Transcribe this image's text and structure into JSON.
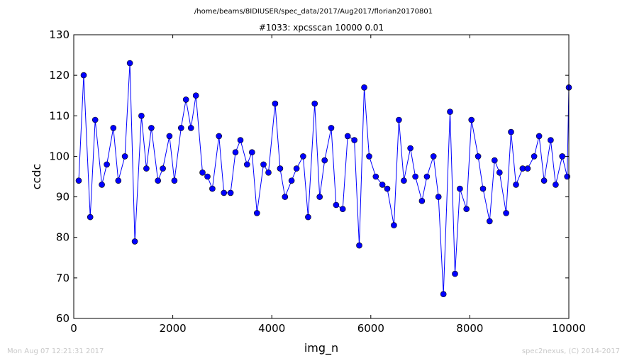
{
  "chart_data": {
    "type": "line",
    "suptitle": "/home/beams/8IDIUSER/spec_data/2017/Aug2017/florian20170801",
    "title": "#1033: xpcsscan 10000 0.01",
    "xlabel": "img_n",
    "ylabel": "ccdc",
    "xlim": [
      0,
      10000
    ],
    "ylim": [
      60,
      130
    ],
    "xticks": [
      0,
      2000,
      4000,
      6000,
      8000,
      10000
    ],
    "yticks": [
      60,
      70,
      80,
      90,
      100,
      110,
      120,
      130
    ],
    "xtick_labels": [
      "0",
      "2000",
      "4000",
      "6000",
      "8000",
      "10000"
    ],
    "ytick_labels": [
      "60",
      "70",
      "80",
      "90",
      "100",
      "110",
      "120",
      "130"
    ],
    "grid": false,
    "line_color": "#0000ff",
    "marker_color": "#0000ff",
    "marker": "circle",
    "series": [
      {
        "x": [
          100,
          200,
          333,
          433,
          567,
          667,
          800,
          900,
          1033,
          1133,
          1233,
          1367,
          1467,
          1567,
          1700,
          1800,
          1933,
          2033,
          2167,
          2267,
          2367,
          2467,
          2600,
          2700,
          2800,
          2933,
          3033,
          3167,
          3267,
          3367,
          3500,
          3600,
          3700,
          3833,
          3933,
          4067,
          4167,
          4267,
          4400,
          4500,
          4633,
          4733,
          4867,
          4967,
          5067,
          5200,
          5300,
          5433,
          5533,
          5667,
          5767,
          5867,
          5967,
          6100,
          6233,
          6333,
          6467,
          6567,
          6667,
          6800,
          6900,
          7033,
          7133,
          7267,
          7367,
          7467,
          7600,
          7700,
          7800,
          7933,
          8033,
          8167,
          8267,
          8400,
          8500,
          8600,
          8733,
          8833,
          8933,
          9067,
          9167,
          9300,
          9400,
          9500,
          9633,
          9733,
          9867,
          9967,
          10000
        ],
        "y": [
          94,
          120,
          85,
          109,
          93,
          98,
          107,
          94,
          100,
          123,
          79,
          110,
          97,
          107,
          94,
          97,
          105,
          94,
          107,
          114,
          107,
          115,
          96,
          95,
          92,
          105,
          91,
          91,
          101,
          104,
          98,
          101,
          86,
          98,
          96,
          113,
          97,
          90,
          94,
          97,
          100,
          85,
          113,
          90,
          99,
          107,
          88,
          87,
          105,
          104,
          78,
          117,
          100,
          95,
          93,
          92,
          83,
          109,
          94,
          102,
          95,
          89,
          95,
          100,
          90,
          66,
          111,
          71,
          92,
          87,
          109,
          100,
          92,
          84,
          99,
          96,
          86,
          106,
          93,
          97,
          97,
          100,
          105,
          94,
          104,
          93,
          100,
          95,
          117
        ]
      }
    ]
  },
  "footer": {
    "timestamp": "Mon Aug 07 12:21:31 2017",
    "credit": "spec2nexus, (C) 2014-2017"
  }
}
